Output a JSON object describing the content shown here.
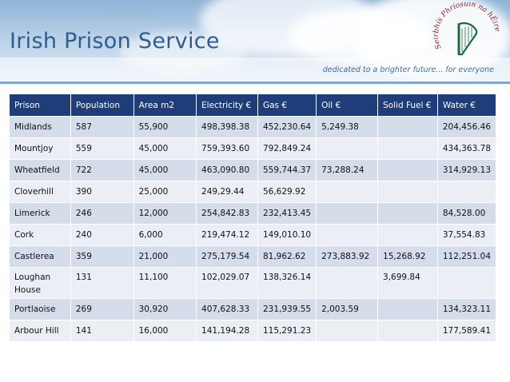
{
  "header": {
    "title": "Irish Prison Service",
    "tagline": "dedicated to a brighter future... for everyone",
    "seal_text": "Seirbhís Phríosúin na hÉireann"
  },
  "table": {
    "columns": [
      "Prison",
      "Population",
      "Area m2",
      "Electricity €",
      "Gas €",
      "Oil €",
      "Solid Fuel €",
      "Water €"
    ],
    "rows": [
      [
        "Midlands",
        "587",
        "55,900",
        "498,398.38",
        "452,230.64",
        "5,249.38",
        "",
        "204,456.46"
      ],
      [
        "Mountjoy",
        "559",
        "45,000",
        "759,393.60",
        "792,849.24",
        "",
        "",
        "434,363.78"
      ],
      [
        "Wheatfield",
        "722",
        "45,000",
        "463,090.80",
        "559,744.37",
        "73,288.24",
        "",
        "314,929.13"
      ],
      [
        "Cloverhill",
        "390",
        "25,000",
        "249,29.44",
        "56,629.92",
        "",
        "",
        ""
      ],
      [
        "Limerick",
        "246",
        "12,000",
        "254,842.83",
        "232,413.45",
        "",
        "",
        "84,528.00"
      ],
      [
        "Cork",
        "240",
        "6,000",
        "219,474.12",
        "149,010.10",
        "",
        "",
        "37,554.83"
      ],
      [
        "Castlerea",
        "359",
        "21,000",
        "275,179.54",
        "81,962.62",
        "273,883.92",
        "15,268.92",
        "112,251.04"
      ],
      [
        "Loughan House",
        "131",
        "11,100",
        "102,029.07",
        "138,326.14",
        "",
        "3,699.84",
        ""
      ],
      [
        "Portlaoise",
        "269",
        "30,920",
        "407,628.33",
        "231,939.55",
        "2,003.59",
        "",
        "134,323.11"
      ],
      [
        "Arbour Hill",
        "141",
        "16,000",
        "141,194.28",
        "115,291.23",
        "",
        "",
        "177,589.41"
      ]
    ]
  }
}
